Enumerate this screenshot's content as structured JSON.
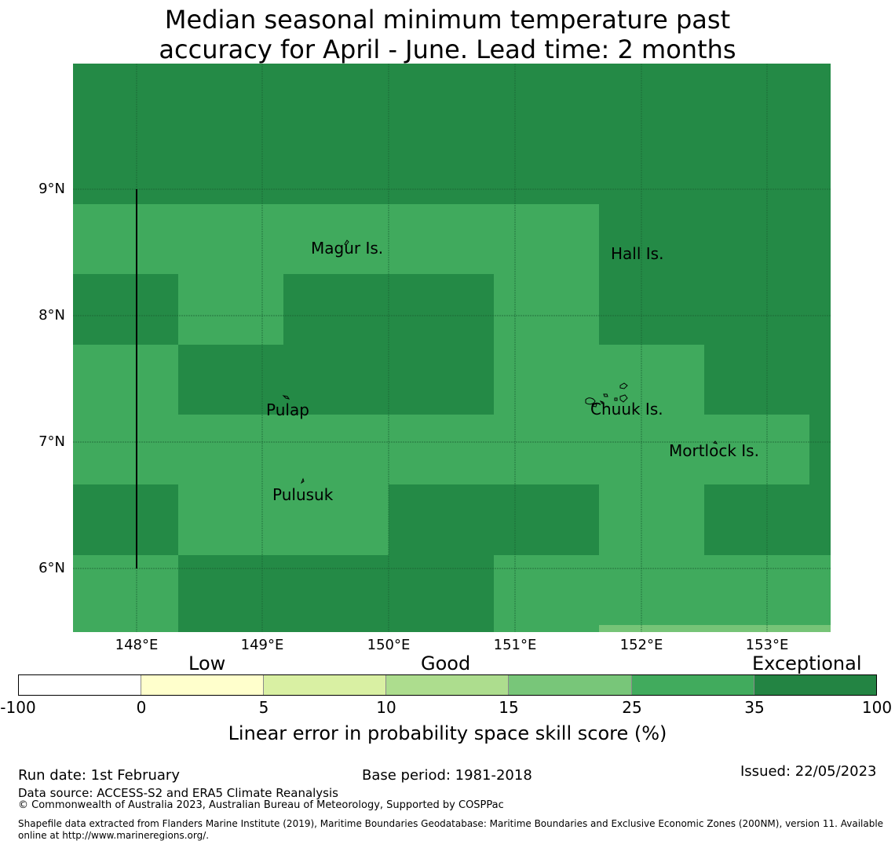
{
  "title_line1": "Median seasonal minimum temperature past",
  "title_line2": "accuracy for April - June. Lead time: 2 months",
  "map": {
    "lat_labels": [
      "9°N",
      "8°N",
      "7°N",
      "6°N"
    ],
    "lon_labels": [
      "148°E",
      "149°E",
      "150°E",
      "151°E",
      "152°E",
      "153°E"
    ],
    "places": [
      "Magur Is.",
      "Hall Is.",
      "Pulap",
      "Chuuk Is.",
      "Mortlock Is.",
      "Pulusuk"
    ],
    "colors": {
      "exceptional": "#248a46",
      "good_high": "#40aa5d",
      "good_mid": "#76c477"
    }
  },
  "legend": {
    "categories": [
      "Low",
      "Good",
      "Exceptional"
    ],
    "ticks": [
      "-100",
      "0",
      "5",
      "10",
      "15",
      "25",
      "35",
      "100"
    ],
    "colors": [
      "#ffffff",
      "#ffffcc",
      "#d9f0a3",
      "#addd8e",
      "#78c679",
      "#41ab5d",
      "#238443"
    ],
    "axis_label": "Linear error in probability space skill score (%)"
  },
  "footer": {
    "run_date": "Run date: 1st February",
    "base_period": "Base period: 1981-2018",
    "issued": "Issued: 22/05/2023",
    "data_source": "Data source: ACCESS-S2 and ERA5 Climate Reanalysis",
    "copyright": "© Commonwealth of Australia 2023, Australian Bureau of Meteorology, Supported by COSPPac",
    "shapefile_line1": "Shapefile data extracted from Flanders Marine Institute (2019), Maritime Boundaries Geodatabase: Maritime Boundaries and Exclusive Economic Zones (200NM), version 11. Available",
    "shapefile_line2": "online at http://www.marineregions.org/."
  }
}
